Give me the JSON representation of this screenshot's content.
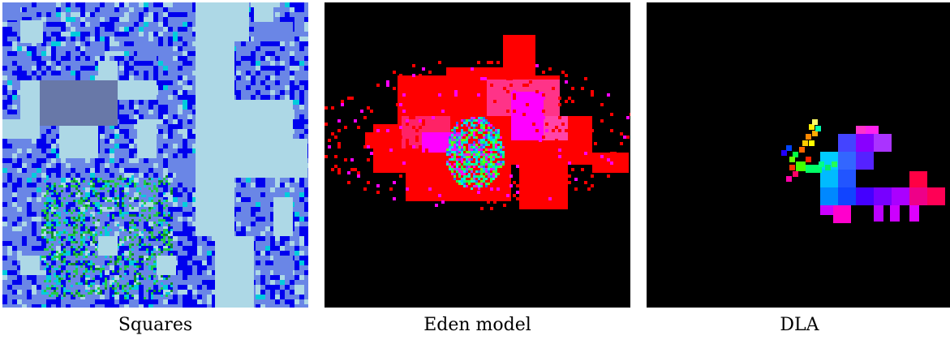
{
  "panels": [
    {
      "caption": "Squares",
      "image": "squares-tiling-fractal"
    },
    {
      "caption": "Eden model",
      "image": "eden-model-growth-cluster"
    },
    {
      "caption": "DLA",
      "image": "dla-aggregate-cluster"
    }
  ],
  "colors": {
    "light_blue": "#add8e6",
    "slate_blue": "#6a86e6",
    "dark_slate": "#6878a8",
    "blue": "#0000ee",
    "cyan": "#00ccdd",
    "green": "#22cc44",
    "red": "#ff0000",
    "magenta": "#ff00ff",
    "background_black": "#000000"
  }
}
